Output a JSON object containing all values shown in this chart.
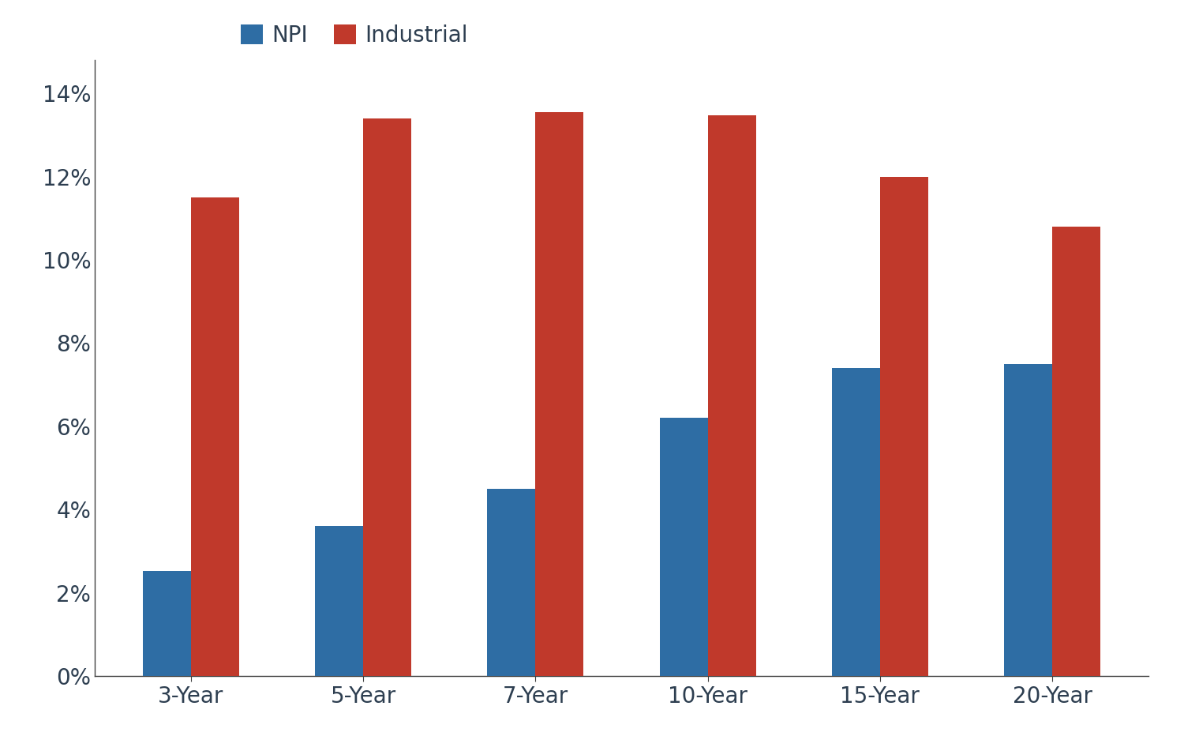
{
  "categories": [
    "3-Year",
    "5-Year",
    "7-Year",
    "10-Year",
    "15-Year",
    "20-Year"
  ],
  "npi_values": [
    0.0252,
    0.036,
    0.045,
    0.062,
    0.074,
    0.075
  ],
  "industrial_values": [
    0.115,
    0.134,
    0.1355,
    0.1348,
    0.12,
    0.108
  ],
  "npi_color": "#2E6DA4",
  "industrial_color": "#C0392B",
  "legend_labels": [
    "NPI",
    "Industrial"
  ],
  "ylim": [
    0,
    0.148
  ],
  "yticks": [
    0.0,
    0.02,
    0.04,
    0.06,
    0.08,
    0.1,
    0.12,
    0.14
  ],
  "bar_width": 0.28,
  "figsize": [
    15.0,
    9.51
  ],
  "dpi": 100,
  "background_color": "#ffffff",
  "spine_color": "#404040",
  "text_color": "#2d3e50",
  "tick_fontsize": 20,
  "legend_fontsize": 20
}
